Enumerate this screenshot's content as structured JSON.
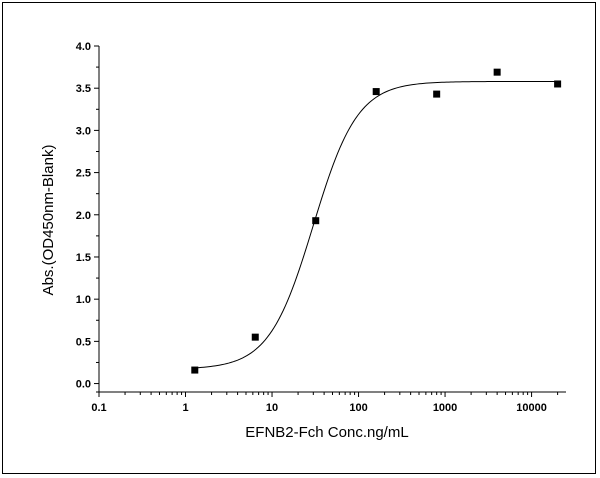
{
  "chart_data": {
    "type": "scatter",
    "title": "",
    "xlabel": "EFNB2-Fch Conc.ng/mL",
    "ylabel": "Abs.(OD450nm-Blank)",
    "x_scale": "log",
    "xlim": [
      0.1,
      25000
    ],
    "ylim": [
      -0.1,
      4.0
    ],
    "x_ticks": [
      0.1,
      1,
      10,
      100,
      1000,
      10000
    ],
    "x_tick_labels": [
      "0.1",
      "1",
      "10",
      "100",
      "1000",
      "10000"
    ],
    "y_ticks": [
      0.0,
      0.5,
      1.0,
      1.5,
      2.0,
      2.5,
      3.0,
      3.5,
      4.0
    ],
    "y_tick_labels": [
      "0.0",
      "0.5",
      "1.0",
      "1.5",
      "2.0",
      "2.5",
      "3.0",
      "3.5",
      "4.0"
    ],
    "grid": false,
    "series": [
      {
        "marker": "square",
        "color": "#000000",
        "x": [
          1.28,
          6.4,
          32,
          160,
          800,
          4000,
          20000
        ],
        "y": [
          0.16,
          0.55,
          1.93,
          3.46,
          3.43,
          3.69,
          3.55
        ]
      }
    ],
    "fit_curve": {
      "type": "4PL",
      "color": "#000000",
      "bottom": 0.17,
      "top": 3.58,
      "ec50": 30,
      "hill": 1.7
    }
  }
}
